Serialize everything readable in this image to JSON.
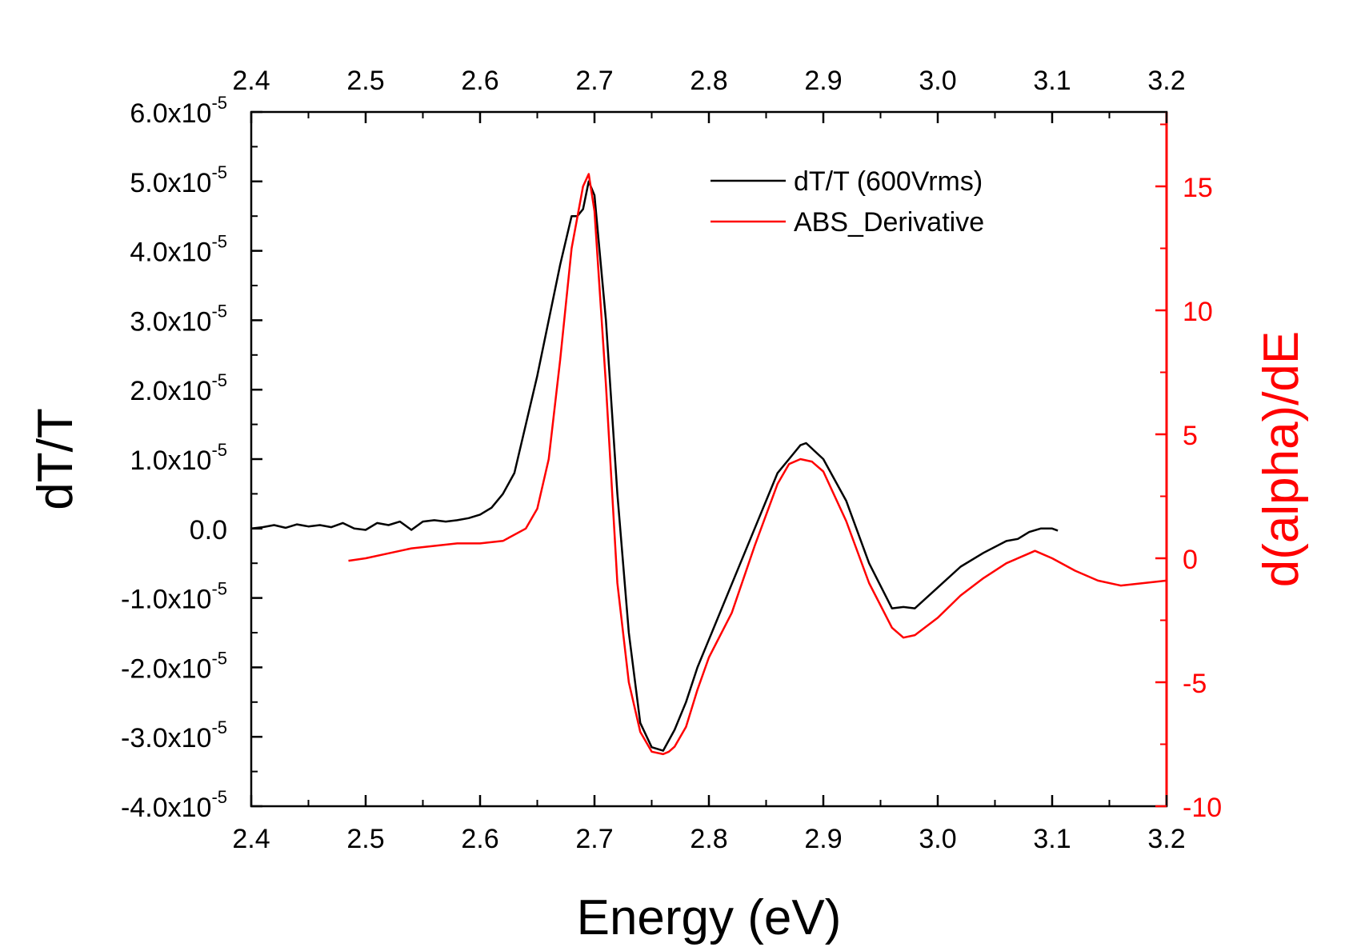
{
  "chart_data": {
    "type": "line",
    "xlabel": "Energy (eV)",
    "ylabel_left": "dT/T",
    "ylabel_right": "d(alpha)/dE",
    "xlim": [
      2.4,
      3.2
    ],
    "xticks": [
      "2.4",
      "2.5",
      "2.6",
      "2.7",
      "2.8",
      "2.9",
      "3.0",
      "3.1",
      "3.2"
    ],
    "ylim_left": [
      -4e-05,
      6e-05
    ],
    "yticks_left": [
      {
        "mant": "6.0x10",
        "exp": "-5"
      },
      {
        "mant": "5.0x10",
        "exp": "-5"
      },
      {
        "mant": "4.0x10",
        "exp": "-5"
      },
      {
        "mant": "3.0x10",
        "exp": "-5"
      },
      {
        "mant": "2.0x10",
        "exp": "-5"
      },
      {
        "mant": "1.0x10",
        "exp": "-5"
      },
      {
        "mant": "0.0",
        "exp": ""
      },
      {
        "mant": "-1.0x10",
        "exp": "-5"
      },
      {
        "mant": "-2.0x10",
        "exp": "-5"
      },
      {
        "mant": "-3.0x10",
        "exp": "-5"
      },
      {
        "mant": "-4.0x10",
        "exp": "-5"
      }
    ],
    "ylim_right": [
      -10,
      18
    ],
    "yticks_right": [
      "15",
      "10",
      "5",
      "0",
      "-5",
      "-10"
    ],
    "grid": false,
    "legend_position": "top-right",
    "colors": {
      "black": "#000000",
      "red": "#ff0000"
    },
    "series": [
      {
        "name": "dT/T (600Vrms)",
        "axis": "left",
        "color": "#000000",
        "x": [
          2.4,
          2.41,
          2.42,
          2.43,
          2.44,
          2.45,
          2.46,
          2.47,
          2.48,
          2.49,
          2.5,
          2.51,
          2.52,
          2.53,
          2.54,
          2.55,
          2.56,
          2.57,
          2.58,
          2.59,
          2.6,
          2.61,
          2.62,
          2.63,
          2.64,
          2.65,
          2.66,
          2.67,
          2.68,
          2.685,
          2.69,
          2.695,
          2.7,
          2.71,
          2.72,
          2.73,
          2.74,
          2.75,
          2.76,
          2.77,
          2.78,
          2.79,
          2.8,
          2.82,
          2.84,
          2.86,
          2.87,
          2.88,
          2.885,
          2.9,
          2.92,
          2.94,
          2.96,
          2.97,
          2.98,
          3.0,
          3.02,
          3.04,
          3.06,
          3.07,
          3.08,
          3.09,
          3.1,
          3.105
        ],
        "values": [
          0.0,
          2e-07,
          5e-07,
          1e-07,
          6e-07,
          3e-07,
          5e-07,
          2e-07,
          8e-07,
          0.0,
          -2e-07,
          8e-07,
          5e-07,
          1e-06,
          -2e-07,
          1e-06,
          1.2e-06,
          1e-06,
          1.2e-06,
          1.5e-06,
          2e-06,
          3e-06,
          5e-06,
          8e-06,
          1.5e-05,
          2.2e-05,
          3e-05,
          3.8e-05,
          4.5e-05,
          4.5e-05,
          4.6e-05,
          5e-05,
          4.8e-05,
          3e-05,
          5e-06,
          -1.5e-05,
          -2.8e-05,
          -3.15e-05,
          -3.2e-05,
          -2.9e-05,
          -2.5e-05,
          -2e-05,
          -1.6e-05,
          -8e-06,
          0.0,
          8e-06,
          1e-05,
          1.2e-05,
          1.23e-05,
          1e-05,
          4e-06,
          -5e-06,
          -1.15e-05,
          -1.13e-05,
          -1.15e-05,
          -8.5e-06,
          -5.5e-06,
          -3.5e-06,
          -1.8e-06,
          -1.5e-06,
          -5e-07,
          0.0,
          0.0,
          -3e-07
        ]
      },
      {
        "name": "ABS_Derivative",
        "axis": "right",
        "color": "#ff0000",
        "x": [
          2.485,
          2.5,
          2.52,
          2.54,
          2.56,
          2.58,
          2.6,
          2.62,
          2.64,
          2.65,
          2.66,
          2.67,
          2.68,
          2.69,
          2.695,
          2.7,
          2.71,
          2.72,
          2.73,
          2.74,
          2.75,
          2.76,
          2.765,
          2.77,
          2.78,
          2.79,
          2.8,
          2.82,
          2.84,
          2.86,
          2.87,
          2.88,
          2.89,
          2.9,
          2.92,
          2.94,
          2.96,
          2.97,
          2.98,
          3.0,
          3.02,
          3.04,
          3.06,
          3.08,
          3.085,
          3.1,
          3.12,
          3.14,
          3.16,
          3.18,
          3.2
        ],
        "values": [
          -0.1,
          0.0,
          0.2,
          0.4,
          0.5,
          0.6,
          0.6,
          0.7,
          1.2,
          2.0,
          4.0,
          8.0,
          12.5,
          15.0,
          15.5,
          14.0,
          7.0,
          -1.0,
          -5.0,
          -7.0,
          -7.8,
          -7.9,
          -7.8,
          -7.6,
          -6.8,
          -5.3,
          -4.0,
          -2.2,
          0.5,
          3.0,
          3.8,
          4.0,
          3.9,
          3.5,
          1.5,
          -1.0,
          -2.8,
          -3.2,
          -3.1,
          -2.4,
          -1.5,
          -0.8,
          -0.2,
          0.2,
          0.3,
          0.0,
          -0.5,
          -0.9,
          -1.1,
          -1.0,
          -0.9
        ]
      }
    ]
  }
}
